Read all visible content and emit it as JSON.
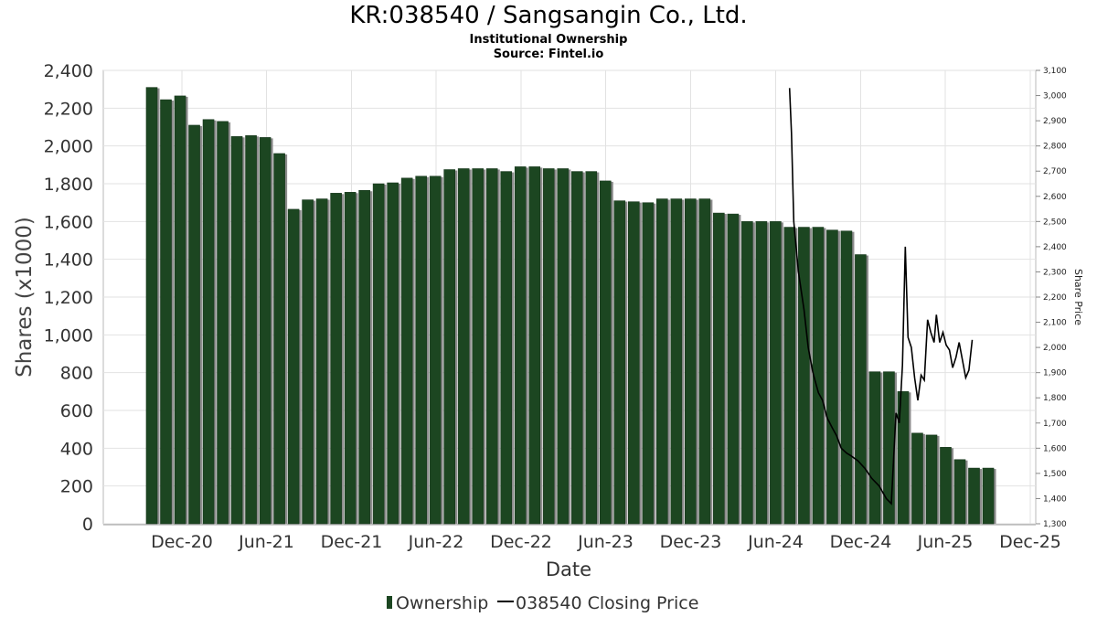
{
  "title": "KR:038540 / Sangsangin Co., Ltd.",
  "subtitle": "Institutional Ownership",
  "source": "Source: Fintel.io",
  "chart_data": {
    "type": "bar",
    "xlabel": "Date",
    "ylabel": "Shares (x1000)",
    "y2label": "Share Price",
    "ylim": [
      0,
      2400
    ],
    "y2lim": [
      1300,
      3100
    ],
    "grid": true,
    "legend_position": "bottom",
    "yticks": [
      "0",
      "200",
      "400",
      "600",
      "800",
      "1,000",
      "1,200",
      "1,400",
      "1,600",
      "1,800",
      "2,000",
      "2,200",
      "2,400"
    ],
    "y2ticks": [
      "1,300",
      "1,400",
      "1,500",
      "1,600",
      "1,700",
      "1,800",
      "1,900",
      "2,000",
      "2,100",
      "2,200",
      "2,300",
      "2,400",
      "2,500",
      "2,600",
      "2,700",
      "2,800",
      "2,900",
      "3,000",
      "3,100"
    ],
    "xticks": [
      "Dec-20",
      "Jun-21",
      "Dec-21",
      "Jun-22",
      "Dec-22",
      "Jun-23",
      "Dec-23",
      "Jun-24",
      "Dec-24",
      "Jun-25",
      "Dec-25"
    ],
    "series": [
      {
        "name": "Ownership",
        "color": "#1c4621",
        "values": [
          2310,
          2245,
          2265,
          2110,
          2140,
          2130,
          2050,
          2055,
          2045,
          1960,
          1665,
          1715,
          1720,
          1750,
          1755,
          1765,
          1800,
          1805,
          1830,
          1840,
          1840,
          1875,
          1880,
          1880,
          1880,
          1865,
          1890,
          1890,
          1880,
          1880,
          1865,
          1865,
          1815,
          1710,
          1705,
          1700,
          1720,
          1720,
          1720,
          1720,
          1645,
          1640,
          1600,
          1600,
          1600,
          1570,
          1570,
          1570,
          1555,
          1550,
          1425,
          805,
          805,
          700,
          480,
          470,
          405,
          340,
          295,
          295
        ]
      },
      {
        "name": "038540 Closing Price",
        "color": "#000000",
        "points": [
          [
            "2024-07-01",
            3030
          ],
          [
            "2024-07-05",
            2850
          ],
          [
            "2024-07-10",
            2500
          ],
          [
            "2024-07-20",
            2300
          ],
          [
            "2024-08-01",
            2150
          ],
          [
            "2024-08-10",
            2000
          ],
          [
            "2024-08-20",
            1900
          ],
          [
            "2024-09-01",
            1820
          ],
          [
            "2024-09-10",
            1790
          ],
          [
            "2024-09-20",
            1720
          ],
          [
            "2024-10-01",
            1680
          ],
          [
            "2024-10-10",
            1650
          ],
          [
            "2024-10-20",
            1600
          ],
          [
            "2024-11-01",
            1580
          ],
          [
            "2024-11-10",
            1570
          ],
          [
            "2024-11-25",
            1550
          ],
          [
            "2024-12-10",
            1520
          ],
          [
            "2024-12-25",
            1480
          ],
          [
            "2025-01-10",
            1450
          ],
          [
            "2025-01-25",
            1400
          ],
          [
            "2025-02-05",
            1380
          ],
          [
            "2025-02-15",
            1740
          ],
          [
            "2025-02-22",
            1700
          ],
          [
            "2025-03-01",
            1930
          ],
          [
            "2025-03-07",
            2400
          ],
          [
            "2025-03-13",
            2040
          ],
          [
            "2025-03-20",
            2000
          ],
          [
            "2025-03-27",
            1880
          ],
          [
            "2025-04-03",
            1790
          ],
          [
            "2025-04-10",
            1890
          ],
          [
            "2025-04-17",
            1870
          ],
          [
            "2025-04-24",
            2110
          ],
          [
            "2025-05-01",
            2060
          ],
          [
            "2025-05-08",
            2020
          ],
          [
            "2025-05-13",
            2130
          ],
          [
            "2025-05-20",
            2020
          ],
          [
            "2025-05-27",
            2060
          ],
          [
            "2025-06-03",
            2010
          ],
          [
            "2025-06-10",
            1990
          ],
          [
            "2025-06-17",
            1920
          ],
          [
            "2025-06-24",
            1960
          ],
          [
            "2025-07-01",
            2020
          ],
          [
            "2025-07-08",
            1950
          ],
          [
            "2025-07-15",
            1880
          ],
          [
            "2025-07-22",
            1910
          ],
          [
            "2025-07-29",
            2030
          ]
        ]
      }
    ]
  }
}
